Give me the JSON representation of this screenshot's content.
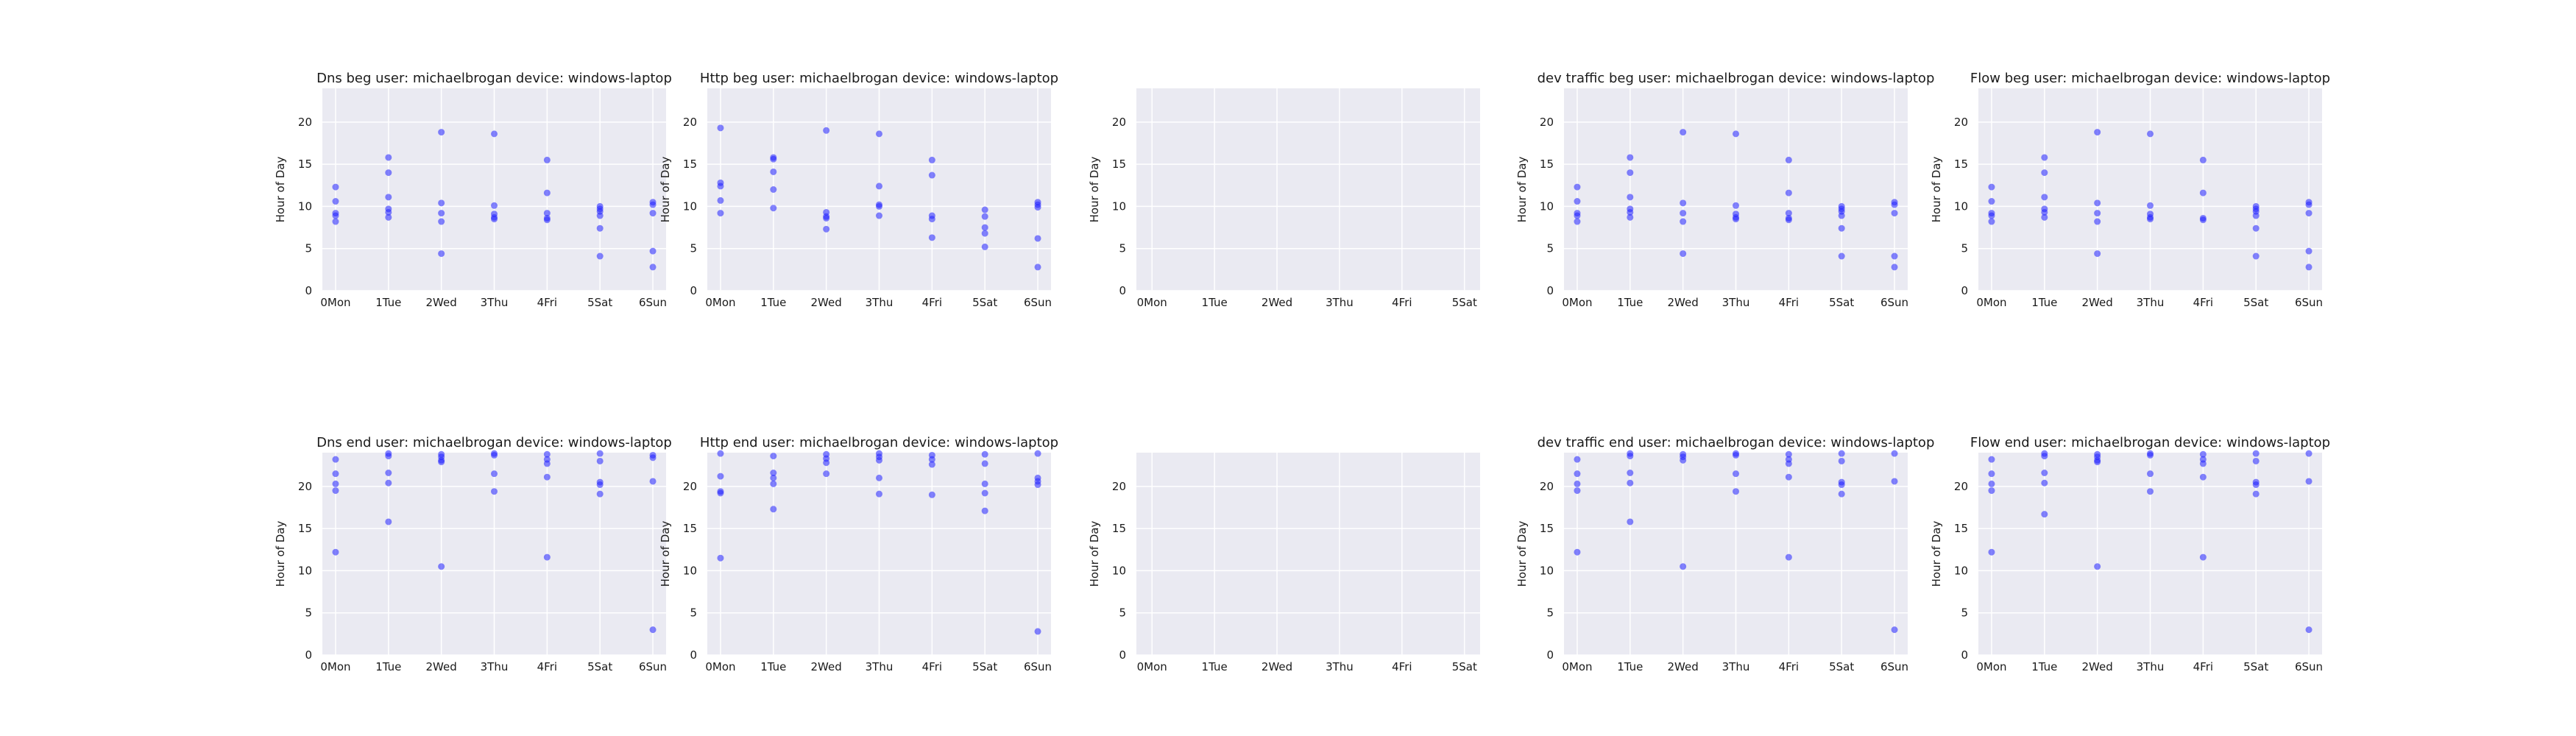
{
  "figure": {
    "colors": {
      "panel_bg": "#eaeaf2",
      "grid": "#ffffff",
      "point": "#2020ff",
      "text": "#1a1a1a"
    }
  },
  "chart_data": [
    {
      "type": "scatter",
      "title": "Dns beg user: michaelbrogan device: windows-laptop",
      "ylabel": "Hour of Day",
      "xlabel": "",
      "categories": [
        "0Mon",
        "1Tue",
        "2Wed",
        "3Thu",
        "4Fri",
        "5Sat",
        "6Sun"
      ],
      "xlim": [
        -0.25,
        6.25
      ],
      "ylim": [
        0,
        24
      ],
      "yticks": [
        0,
        5,
        10,
        15,
        20
      ],
      "grid": true,
      "points": [
        [
          0,
          12.3
        ],
        [
          0,
          10.6
        ],
        [
          0,
          9.2
        ],
        [
          0,
          8.9
        ],
        [
          0,
          8.2
        ],
        [
          1,
          15.8
        ],
        [
          1,
          14.0
        ],
        [
          1,
          11.1
        ],
        [
          1,
          9.7
        ],
        [
          1,
          9.3
        ],
        [
          1,
          8.7
        ],
        [
          2,
          18.8
        ],
        [
          2,
          10.4
        ],
        [
          2,
          9.2
        ],
        [
          2,
          8.2
        ],
        [
          2,
          4.4
        ],
        [
          3,
          18.6
        ],
        [
          3,
          10.1
        ],
        [
          3,
          9.1
        ],
        [
          3,
          8.7
        ],
        [
          3,
          8.5
        ],
        [
          4,
          15.5
        ],
        [
          4,
          11.6
        ],
        [
          4,
          9.2
        ],
        [
          4,
          8.6
        ],
        [
          4,
          8.4
        ],
        [
          5,
          10.0
        ],
        [
          5,
          9.7
        ],
        [
          5,
          9.4
        ],
        [
          5,
          8.9
        ],
        [
          5,
          7.4
        ],
        [
          5,
          4.1
        ],
        [
          6,
          10.5
        ],
        [
          6,
          10.2
        ],
        [
          6,
          9.2
        ],
        [
          6,
          4.7
        ],
        [
          6,
          2.8
        ]
      ]
    },
    {
      "type": "scatter",
      "title": "Http beg user: michaelbrogan device: windows-laptop",
      "ylabel": "Hour of Day",
      "xlabel": "",
      "categories": [
        "0Mon",
        "1Tue",
        "2Wed",
        "3Thu",
        "4Fri",
        "5Sat",
        "6Sun"
      ],
      "xlim": [
        -0.25,
        6.25
      ],
      "ylim": [
        0,
        24
      ],
      "yticks": [
        0,
        5,
        10,
        15,
        20
      ],
      "grid": true,
      "points": [
        [
          0,
          19.3
        ],
        [
          0,
          12.8
        ],
        [
          0,
          12.4
        ],
        [
          0,
          10.7
        ],
        [
          0,
          9.2
        ],
        [
          1,
          15.8
        ],
        [
          1,
          15.6
        ],
        [
          1,
          14.1
        ],
        [
          1,
          12.0
        ],
        [
          1,
          9.8
        ],
        [
          2,
          19.0
        ],
        [
          2,
          9.3
        ],
        [
          2,
          8.8
        ],
        [
          2,
          8.6
        ],
        [
          2,
          7.3
        ],
        [
          3,
          18.6
        ],
        [
          3,
          12.4
        ],
        [
          3,
          10.2
        ],
        [
          3,
          10.0
        ],
        [
          3,
          8.9
        ],
        [
          4,
          15.5
        ],
        [
          4,
          13.7
        ],
        [
          4,
          8.9
        ],
        [
          4,
          8.5
        ],
        [
          4,
          6.3
        ],
        [
          5,
          9.6
        ],
        [
          5,
          8.8
        ],
        [
          5,
          7.5
        ],
        [
          5,
          6.8
        ],
        [
          5,
          5.2
        ],
        [
          6,
          10.5
        ],
        [
          6,
          10.2
        ],
        [
          6,
          9.9
        ],
        [
          6,
          6.2
        ],
        [
          6,
          2.8
        ]
      ]
    },
    {
      "type": "scatter",
      "title": "",
      "ylabel": "Hour of Day",
      "xlabel": "",
      "categories": [
        "0Mon",
        "1Tue",
        "2Wed",
        "3Thu",
        "4Fri",
        "5Sat"
      ],
      "xlim": [
        -0.25,
        5.25
      ],
      "ylim": [
        0,
        24
      ],
      "yticks": [
        0,
        5,
        10,
        15,
        20
      ],
      "grid": true,
      "points": []
    },
    {
      "type": "scatter",
      "title": "dev traffic beg user: michaelbrogan device: windows-laptop",
      "ylabel": "Hour of Day",
      "xlabel": "",
      "categories": [
        "0Mon",
        "1Tue",
        "2Wed",
        "3Thu",
        "4Fri",
        "5Sat",
        "6Sun"
      ],
      "xlim": [
        -0.25,
        6.25
      ],
      "ylim": [
        0,
        24
      ],
      "yticks": [
        0,
        5,
        10,
        15,
        20
      ],
      "grid": true,
      "points": [
        [
          0,
          12.3
        ],
        [
          0,
          10.6
        ],
        [
          0,
          9.2
        ],
        [
          0,
          8.9
        ],
        [
          0,
          8.2
        ],
        [
          1,
          15.8
        ],
        [
          1,
          14.0
        ],
        [
          1,
          11.1
        ],
        [
          1,
          9.7
        ],
        [
          1,
          9.3
        ],
        [
          1,
          8.7
        ],
        [
          2,
          18.8
        ],
        [
          2,
          10.4
        ],
        [
          2,
          9.2
        ],
        [
          2,
          8.2
        ],
        [
          2,
          4.4
        ],
        [
          3,
          18.6
        ],
        [
          3,
          10.1
        ],
        [
          3,
          9.1
        ],
        [
          3,
          8.7
        ],
        [
          3,
          8.5
        ],
        [
          4,
          15.5
        ],
        [
          4,
          11.6
        ],
        [
          4,
          9.2
        ],
        [
          4,
          8.6
        ],
        [
          4,
          8.4
        ],
        [
          5,
          10.0
        ],
        [
          5,
          9.7
        ],
        [
          5,
          9.4
        ],
        [
          5,
          8.9
        ],
        [
          5,
          7.4
        ],
        [
          5,
          4.1
        ],
        [
          6,
          10.5
        ],
        [
          6,
          10.2
        ],
        [
          6,
          9.2
        ],
        [
          6,
          4.1
        ],
        [
          6,
          2.8
        ]
      ]
    },
    {
      "type": "scatter",
      "title": "Flow beg user: michaelbrogan device: windows-laptop",
      "ylabel": "Hour of Day",
      "xlabel": "",
      "categories": [
        "0Mon",
        "1Tue",
        "2Wed",
        "3Thu",
        "4Fri",
        "5Sat",
        "6Sun"
      ],
      "xlim": [
        -0.25,
        6.25
      ],
      "ylim": [
        0,
        24
      ],
      "yticks": [
        0,
        5,
        10,
        15,
        20
      ],
      "grid": true,
      "points": [
        [
          0,
          12.3
        ],
        [
          0,
          10.6
        ],
        [
          0,
          9.2
        ],
        [
          0,
          8.9
        ],
        [
          0,
          8.2
        ],
        [
          1,
          15.8
        ],
        [
          1,
          14.0
        ],
        [
          1,
          11.1
        ],
        [
          1,
          9.7
        ],
        [
          1,
          9.3
        ],
        [
          1,
          8.7
        ],
        [
          2,
          18.8
        ],
        [
          2,
          10.4
        ],
        [
          2,
          9.2
        ],
        [
          2,
          8.2
        ],
        [
          2,
          4.4
        ],
        [
          3,
          18.6
        ],
        [
          3,
          10.1
        ],
        [
          3,
          9.1
        ],
        [
          3,
          8.7
        ],
        [
          3,
          8.5
        ],
        [
          4,
          15.5
        ],
        [
          4,
          11.6
        ],
        [
          4,
          8.6
        ],
        [
          4,
          8.4
        ],
        [
          5,
          10.0
        ],
        [
          5,
          9.7
        ],
        [
          5,
          9.4
        ],
        [
          5,
          8.9
        ],
        [
          5,
          7.4
        ],
        [
          5,
          4.1
        ],
        [
          6,
          10.5
        ],
        [
          6,
          10.2
        ],
        [
          6,
          9.2
        ],
        [
          6,
          4.7
        ],
        [
          6,
          2.8
        ]
      ]
    },
    {
      "type": "scatter",
      "title": "Dns end user: michaelbrogan device: windows-laptop",
      "ylabel": "Hour of Day",
      "xlabel": "",
      "categories": [
        "0Mon",
        "1Tue",
        "2Wed",
        "3Thu",
        "4Fri",
        "5Sat",
        "6Sun"
      ],
      "xlim": [
        -0.25,
        6.25
      ],
      "ylim": [
        0,
        24
      ],
      "yticks": [
        0,
        5,
        10,
        15,
        20
      ],
      "grid": true,
      "points": [
        [
          0,
          23.2
        ],
        [
          0,
          21.5
        ],
        [
          0,
          20.3
        ],
        [
          0,
          19.5
        ],
        [
          0,
          12.2
        ],
        [
          1,
          23.9
        ],
        [
          1,
          23.6
        ],
        [
          1,
          21.6
        ],
        [
          1,
          20.4
        ],
        [
          1,
          15.8
        ],
        [
          2,
          23.8
        ],
        [
          2,
          23.5
        ],
        [
          2,
          23.1
        ],
        [
          2,
          22.9
        ],
        [
          2,
          10.5
        ],
        [
          3,
          23.9
        ],
        [
          3,
          23.7
        ],
        [
          3,
          21.5
        ],
        [
          3,
          19.4
        ],
        [
          4,
          23.8
        ],
        [
          4,
          23.2
        ],
        [
          4,
          22.7
        ],
        [
          4,
          21.1
        ],
        [
          4,
          11.6
        ],
        [
          5,
          23.9
        ],
        [
          5,
          23.0
        ],
        [
          5,
          20.5
        ],
        [
          5,
          20.2
        ],
        [
          5,
          19.1
        ],
        [
          6,
          23.7
        ],
        [
          6,
          23.4
        ],
        [
          6,
          20.6
        ],
        [
          6,
          3.0
        ]
      ]
    },
    {
      "type": "scatter",
      "title": "Http end user: michaelbrogan device: windows-laptop",
      "ylabel": "Hour of Day",
      "xlabel": "",
      "categories": [
        "0Mon",
        "1Tue",
        "2Wed",
        "3Thu",
        "4Fri",
        "5Sat",
        "6Sun"
      ],
      "xlim": [
        -0.25,
        6.25
      ],
      "ylim": [
        0,
        24
      ],
      "yticks": [
        0,
        5,
        10,
        15,
        20
      ],
      "grid": true,
      "points": [
        [
          0,
          23.9
        ],
        [
          0,
          21.2
        ],
        [
          0,
          19.4
        ],
        [
          0,
          19.2
        ],
        [
          0,
          11.5
        ],
        [
          1,
          23.6
        ],
        [
          1,
          21.6
        ],
        [
          1,
          21.0
        ],
        [
          1,
          20.3
        ],
        [
          1,
          17.3
        ],
        [
          2,
          23.8
        ],
        [
          2,
          23.3
        ],
        [
          2,
          22.8
        ],
        [
          2,
          21.5
        ],
        [
          3,
          23.9
        ],
        [
          3,
          23.5
        ],
        [
          3,
          23.1
        ],
        [
          3,
          21.0
        ],
        [
          3,
          19.1
        ],
        [
          4,
          23.7
        ],
        [
          4,
          23.2
        ],
        [
          4,
          22.6
        ],
        [
          4,
          19.0
        ],
        [
          5,
          23.8
        ],
        [
          5,
          22.7
        ],
        [
          5,
          20.3
        ],
        [
          5,
          19.2
        ],
        [
          5,
          17.1
        ],
        [
          6,
          23.9
        ],
        [
          6,
          21.0
        ],
        [
          6,
          20.6
        ],
        [
          6,
          20.2
        ],
        [
          6,
          2.8
        ]
      ]
    },
    {
      "type": "scatter",
      "title": "",
      "ylabel": "Hour of Day",
      "xlabel": "",
      "categories": [
        "0Mon",
        "1Tue",
        "2Wed",
        "3Thu",
        "4Fri",
        "5Sat"
      ],
      "xlim": [
        -0.25,
        5.25
      ],
      "ylim": [
        0,
        24
      ],
      "yticks": [
        0,
        5,
        10,
        15,
        20
      ],
      "grid": true,
      "points": []
    },
    {
      "type": "scatter",
      "title": "dev traffic end user: michaelbrogan device: windows-laptop",
      "ylabel": "Hour of Day",
      "xlabel": "",
      "categories": [
        "0Mon",
        "1Tue",
        "2Wed",
        "3Thu",
        "4Fri",
        "5Sat",
        "6Sun"
      ],
      "xlim": [
        -0.25,
        6.25
      ],
      "ylim": [
        0,
        24
      ],
      "yticks": [
        0,
        5,
        10,
        15,
        20
      ],
      "grid": true,
      "points": [
        [
          0,
          23.2
        ],
        [
          0,
          21.5
        ],
        [
          0,
          20.3
        ],
        [
          0,
          19.5
        ],
        [
          0,
          12.2
        ],
        [
          1,
          23.9
        ],
        [
          1,
          23.6
        ],
        [
          1,
          21.6
        ],
        [
          1,
          20.4
        ],
        [
          1,
          15.8
        ],
        [
          2,
          23.8
        ],
        [
          2,
          23.5
        ],
        [
          2,
          23.1
        ],
        [
          2,
          10.5
        ],
        [
          3,
          23.9
        ],
        [
          3,
          23.7
        ],
        [
          3,
          21.5
        ],
        [
          3,
          19.4
        ],
        [
          4,
          23.8
        ],
        [
          4,
          23.2
        ],
        [
          4,
          22.7
        ],
        [
          4,
          21.1
        ],
        [
          4,
          11.6
        ],
        [
          5,
          23.9
        ],
        [
          5,
          23.0
        ],
        [
          5,
          20.5
        ],
        [
          5,
          20.2
        ],
        [
          5,
          19.1
        ],
        [
          6,
          23.9
        ],
        [
          6,
          20.6
        ],
        [
          6,
          3.0
        ]
      ]
    },
    {
      "type": "scatter",
      "title": "Flow end user: michaelbrogan device: windows-laptop",
      "ylabel": "Hour of Day",
      "xlabel": "",
      "categories": [
        "0Mon",
        "1Tue",
        "2Wed",
        "3Thu",
        "4Fri",
        "5Sat",
        "6Sun"
      ],
      "xlim": [
        -0.25,
        6.25
      ],
      "ylim": [
        0,
        24
      ],
      "yticks": [
        0,
        5,
        10,
        15,
        20
      ],
      "grid": true,
      "points": [
        [
          0,
          23.2
        ],
        [
          0,
          21.5
        ],
        [
          0,
          20.3
        ],
        [
          0,
          19.5
        ],
        [
          0,
          12.2
        ],
        [
          1,
          23.9
        ],
        [
          1,
          23.6
        ],
        [
          1,
          21.6
        ],
        [
          1,
          20.4
        ],
        [
          1,
          16.7
        ],
        [
          2,
          23.8
        ],
        [
          2,
          23.5
        ],
        [
          2,
          23.1
        ],
        [
          2,
          22.9
        ],
        [
          2,
          10.5
        ],
        [
          3,
          23.9
        ],
        [
          3,
          23.7
        ],
        [
          3,
          21.5
        ],
        [
          3,
          19.4
        ],
        [
          4,
          23.8
        ],
        [
          4,
          23.2
        ],
        [
          4,
          22.7
        ],
        [
          4,
          21.1
        ],
        [
          4,
          11.6
        ],
        [
          5,
          23.9
        ],
        [
          5,
          23.0
        ],
        [
          5,
          20.5
        ],
        [
          5,
          20.2
        ],
        [
          5,
          19.1
        ],
        [
          6,
          23.9
        ],
        [
          6,
          20.6
        ],
        [
          6,
          3.0
        ]
      ]
    }
  ]
}
